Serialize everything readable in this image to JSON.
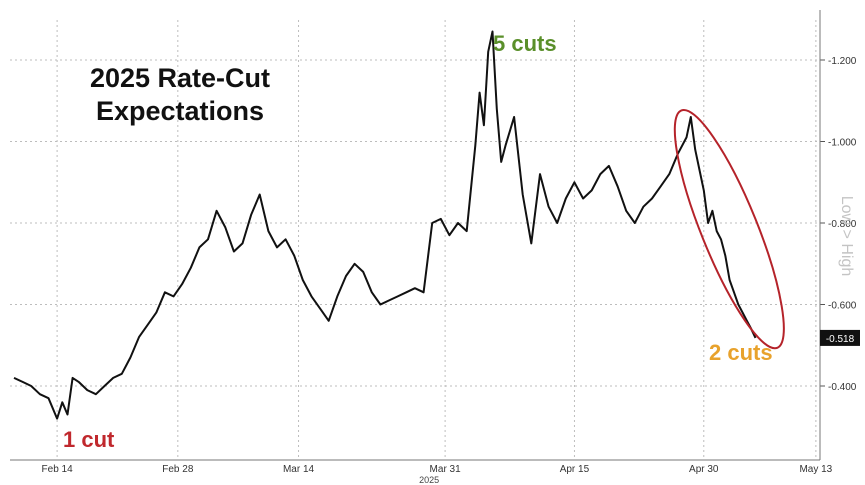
{
  "title_lines": [
    "2025 Rate-Cut",
    "Expectations"
  ],
  "annotations": {
    "one_cut": {
      "text": "1 cut",
      "color": "#c0282d"
    },
    "five_cuts": {
      "text": "5 cuts",
      "color": "#5a8f2a"
    },
    "two_cuts": {
      "text": "2 cuts",
      "color": "#e8a22c"
    }
  },
  "colors": {
    "line": "#111111",
    "grid": "#bdbdbd",
    "highlight_ellipse": "#b5232a",
    "last_value_box": "#111111"
  },
  "chart_data": {
    "type": "line",
    "title": "2025 Rate-Cut Expectations",
    "ylabel": "Low > High",
    "ylim": [
      -0.3,
      -1.3
    ],
    "y_axis_inverted": true,
    "y_ticks": [
      "-1.200",
      "-1.000",
      "-0.800",
      "-0.600",
      "-0.400"
    ],
    "y_tick_values": [
      -1.2,
      -1.0,
      -0.8,
      -0.6,
      -0.4
    ],
    "x_range": [
      0,
      90
    ],
    "x_ticks": [
      "Feb 14",
      "Feb 28",
      "Mar 14",
      "Mar 31",
      "Apr 15",
      "Apr 30",
      "May 13"
    ],
    "x_tick_positions": [
      5,
      19,
      33,
      50,
      65,
      80,
      93
    ],
    "x_year_label": "2025",
    "grid": true,
    "last_value": "-0.518",
    "series": [
      {
        "values": [
          [
            0,
            -0.42
          ],
          [
            1,
            -0.41
          ],
          [
            2,
            -0.4
          ],
          [
            3,
            -0.38
          ],
          [
            4,
            -0.37
          ],
          [
            5,
            -0.32
          ],
          [
            5.6,
            -0.36
          ],
          [
            6.2,
            -0.33
          ],
          [
            6.8,
            -0.42
          ],
          [
            7.5,
            -0.41
          ],
          [
            8.5,
            -0.39
          ],
          [
            9.5,
            -0.38
          ],
          [
            10.5,
            -0.4
          ],
          [
            11.5,
            -0.42
          ],
          [
            12.5,
            -0.43
          ],
          [
            13.5,
            -0.47
          ],
          [
            14.5,
            -0.52
          ],
          [
            15.5,
            -0.55
          ],
          [
            16.5,
            -0.58
          ],
          [
            17.5,
            -0.63
          ],
          [
            18.5,
            -0.62
          ],
          [
            19.5,
            -0.65
          ],
          [
            20.5,
            -0.69
          ],
          [
            21.5,
            -0.74
          ],
          [
            22.5,
            -0.76
          ],
          [
            23.5,
            -0.83
          ],
          [
            24.5,
            -0.79
          ],
          [
            25.5,
            -0.73
          ],
          [
            26.5,
            -0.75
          ],
          [
            27.5,
            -0.82
          ],
          [
            28.5,
            -0.87
          ],
          [
            29.5,
            -0.78
          ],
          [
            30.5,
            -0.74
          ],
          [
            31.5,
            -0.76
          ],
          [
            32.5,
            -0.72
          ],
          [
            33.5,
            -0.66
          ],
          [
            34.5,
            -0.62
          ],
          [
            35.5,
            -0.59
          ],
          [
            36.5,
            -0.56
          ],
          [
            37.5,
            -0.62
          ],
          [
            38.5,
            -0.67
          ],
          [
            39.5,
            -0.7
          ],
          [
            40.5,
            -0.68
          ],
          [
            41.5,
            -0.63
          ],
          [
            42.5,
            -0.6
          ],
          [
            43.5,
            -0.61
          ],
          [
            44.5,
            -0.62
          ],
          [
            45.5,
            -0.63
          ],
          [
            46.5,
            -0.64
          ],
          [
            47.5,
            -0.63
          ],
          [
            48.5,
            -0.8
          ],
          [
            49.5,
            -0.81
          ],
          [
            50.5,
            -0.77
          ],
          [
            51.5,
            -0.8
          ],
          [
            52.5,
            -0.78
          ],
          [
            53.5,
            -0.99
          ],
          [
            54,
            -1.12
          ],
          [
            54.5,
            -1.04
          ],
          [
            55,
            -1.22
          ],
          [
            55.5,
            -1.27
          ],
          [
            56,
            -1.08
          ],
          [
            56.5,
            -0.95
          ],
          [
            57,
            -0.99
          ],
          [
            58,
            -1.06
          ],
          [
            59,
            -0.87
          ],
          [
            60,
            -0.75
          ],
          [
            61,
            -0.92
          ],
          [
            62,
            -0.84
          ],
          [
            63,
            -0.8
          ],
          [
            64,
            -0.86
          ],
          [
            65,
            -0.9
          ],
          [
            66,
            -0.86
          ],
          [
            67,
            -0.88
          ],
          [
            68,
            -0.92
          ],
          [
            69,
            -0.94
          ],
          [
            70,
            -0.89
          ],
          [
            71,
            -0.83
          ],
          [
            72,
            -0.8
          ],
          [
            73,
            -0.84
          ],
          [
            74,
            -0.86
          ],
          [
            75,
            -0.89
          ],
          [
            76,
            -0.92
          ],
          [
            77,
            -0.97
          ],
          [
            78,
            -1.01
          ],
          [
            78.5,
            -1.06
          ],
          [
            79,
            -0.98
          ],
          [
            79.5,
            -0.93
          ],
          [
            80,
            -0.88
          ],
          [
            80.5,
            -0.8
          ],
          [
            81,
            -0.83
          ],
          [
            81.5,
            -0.78
          ],
          [
            82,
            -0.76
          ],
          [
            82.5,
            -0.72
          ],
          [
            83,
            -0.66
          ],
          [
            83.5,
            -0.63
          ],
          [
            84,
            -0.6
          ],
          [
            84.5,
            -0.58
          ],
          [
            85,
            -0.56
          ],
          [
            85.5,
            -0.54
          ],
          [
            86,
            -0.518
          ]
        ]
      }
    ]
  }
}
